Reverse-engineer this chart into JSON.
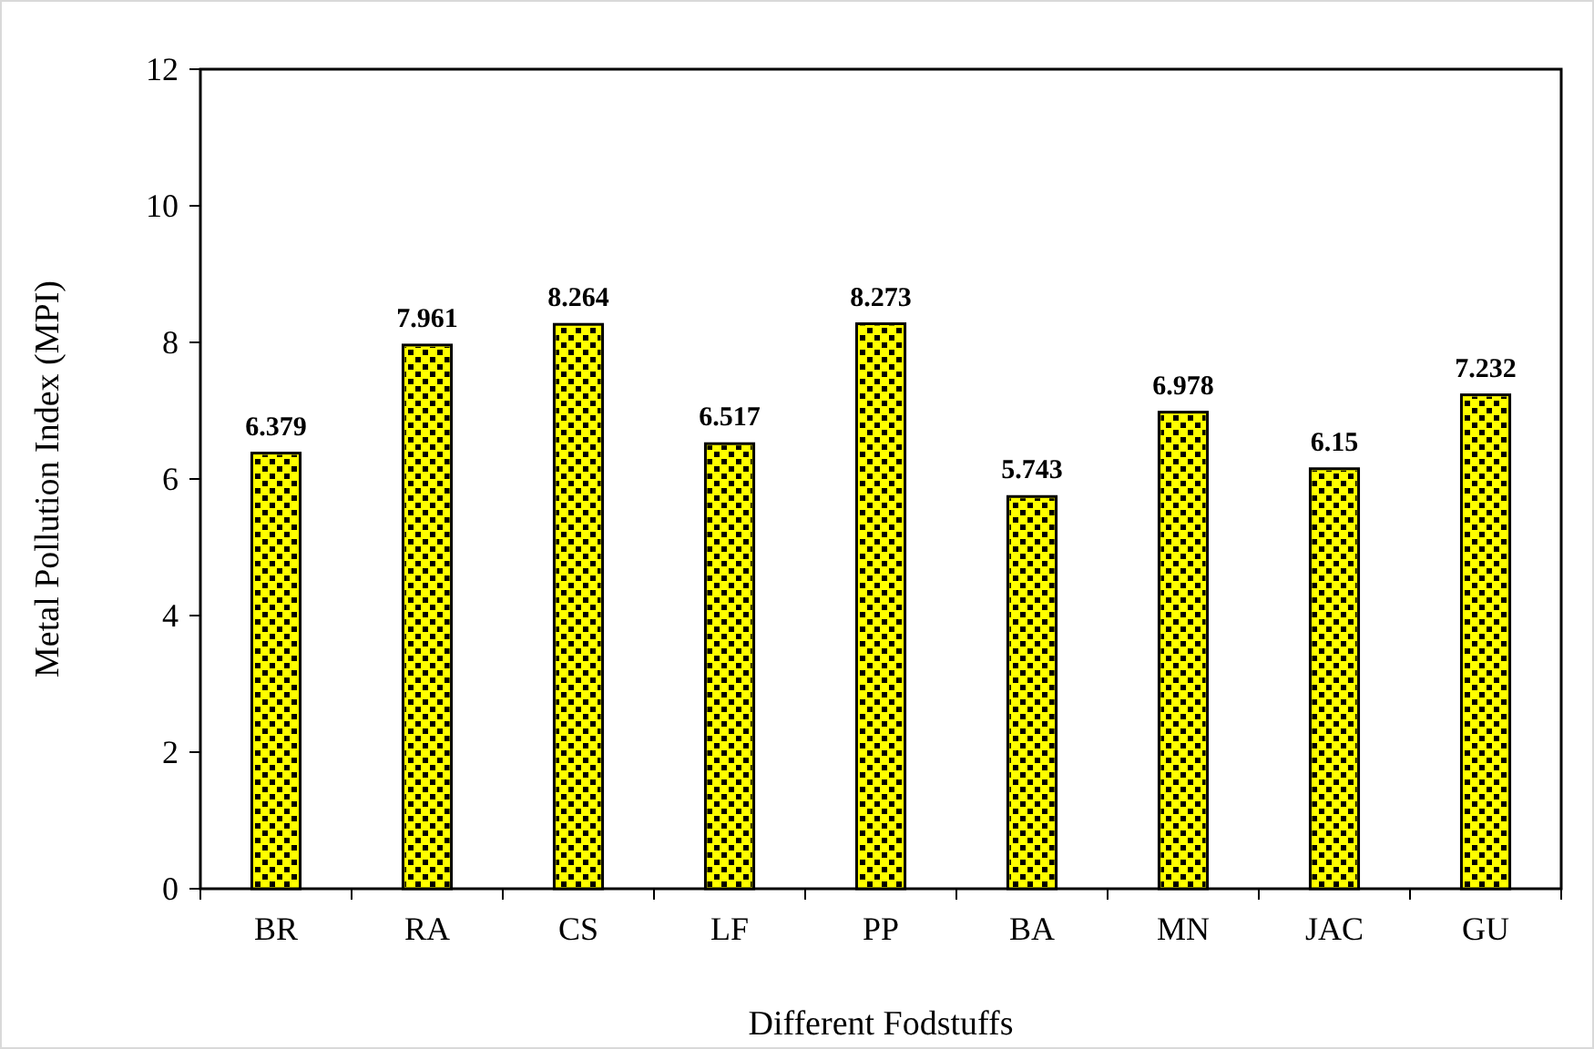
{
  "chart_data": {
    "type": "bar",
    "xlabel": "Different Fodstuffs",
    "ylabel": "Metal Pollution Index (MPI)",
    "categories": [
      "BR",
      "RA",
      "CS",
      "LF",
      "PP",
      "BA",
      "MN",
      "JAC",
      "GU"
    ],
    "values": [
      6.379,
      7.961,
      8.264,
      6.517,
      8.273,
      5.743,
      6.978,
      6.15,
      7.232
    ],
    "color": "#ffff00",
    "ylim": [
      0,
      12
    ],
    "yticks": [
      0,
      2,
      4,
      6,
      8,
      10,
      12
    ],
    "grid": false,
    "data_labels": true
  }
}
